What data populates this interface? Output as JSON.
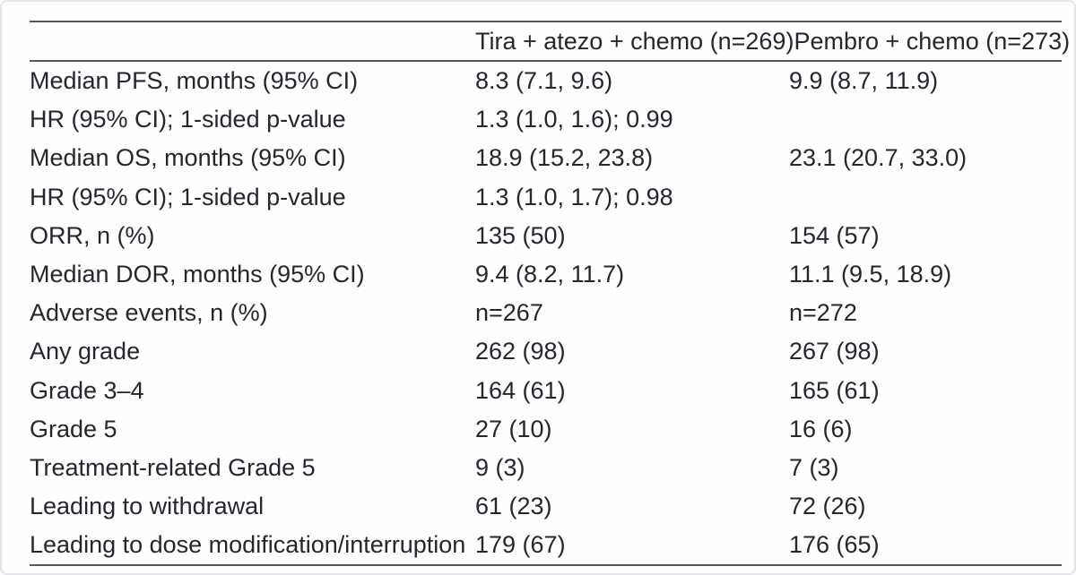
{
  "colors": {
    "text": "#26262e",
    "rule": "#55555b",
    "background": "#fefefe",
    "frame_border": "#e4e4ea"
  },
  "table": {
    "columns": [
      "",
      "Tira + atezo + chemo (n=269)",
      "Pembro + chemo (n=273)"
    ],
    "rows": [
      {
        "label": "Median PFS, months (95% CI)",
        "col1": "8.3 (7.1, 9.6)",
        "col2": "9.9 (8.7, 11.9)"
      },
      {
        "label": "HR (95% CI); 1-sided p-value",
        "col1": "1.3 (1.0, 1.6); 0.99",
        "col2": ""
      },
      {
        "label": "Median OS, months (95% CI)",
        "col1": "18.9 (15.2, 23.8)",
        "col2": "23.1 (20.7, 33.0)"
      },
      {
        "label": "HR (95% CI); 1-sided p-value",
        "col1": "1.3 (1.0, 1.7); 0.98",
        "col2": ""
      },
      {
        "label": "ORR, n (%)",
        "col1": "135 (50)",
        "col2": "154 (57)"
      },
      {
        "label": "Median DOR, months (95% CI)",
        "col1": "9.4 (8.2, 11.7)",
        "col2": "11.1 (9.5, 18.9)"
      },
      {
        "label": "Adverse events, n (%)",
        "col1": "n=267",
        "col2": "n=272"
      },
      {
        "label": "Any grade",
        "col1": "262 (98)",
        "col2": "267 (98)"
      },
      {
        "label": "Grade 3–4",
        "col1": "164 (61)",
        "col2": "165 (61)"
      },
      {
        "label": "Grade 5",
        "col1": "27 (10)",
        "col2": "16 (6)"
      },
      {
        "label": "Treatment-related Grade 5",
        "col1": "9 (3)",
        "col2": "7 (3)"
      },
      {
        "label": "Leading to withdrawal",
        "col1": "61 (23)",
        "col2": "72 (26)"
      },
      {
        "label": "Leading to dose modification/interruption",
        "col1": "179 (67)",
        "col2": "176 (65)"
      }
    ]
  }
}
